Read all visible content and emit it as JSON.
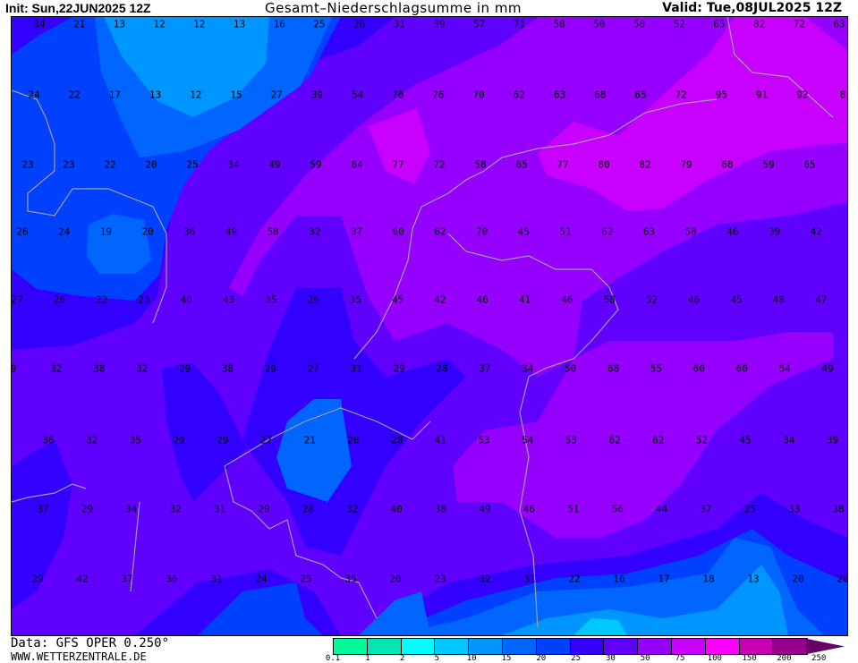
{
  "header": {
    "init": "Init: Sun,22JUN2025 12Z",
    "title": "Gesamt–Niederschlagsumme in mm",
    "valid": "Valid: Tue,08JUL2025 12Z"
  },
  "footer": {
    "source": "Data: GFS OPER 0.250°",
    "site": "WWW.WETTERZENTRALE.DE"
  },
  "legend": {
    "ticks": [
      "0.1",
      "1",
      "2",
      "5",
      "10",
      "15",
      "20",
      "25",
      "30",
      "50",
      "75",
      "100",
      "150",
      "200",
      "250"
    ],
    "colors": [
      "#00fa9a",
      "#00e6b4",
      "#00ffff",
      "#00c8ff",
      "#0096ff",
      "#0066ff",
      "#0040ff",
      "#3300ff",
      "#6000ff",
      "#9600ff",
      "#c800ff",
      "#ff00ff",
      "#c800b4",
      "#96008c",
      "#640064"
    ]
  },
  "map": {
    "colors": {
      "c10": "#0096ff",
      "c15": "#0066ff",
      "c20": "#0040ff",
      "c25": "#3300ff",
      "c30": "#6000ff",
      "c50": "#9600ff",
      "c75": "#c800ff",
      "c5": "#00c8ff",
      "border": "#a0a0a0"
    },
    "rows": [
      [
        "34",
        "21",
        "13",
        "12",
        "12",
        "13",
        "16",
        "25",
        "26",
        "31",
        "39",
        "57",
        "71",
        "58",
        "50",
        "50",
        "52",
        "65",
        "82",
        "72",
        "63"
      ],
      [
        "24",
        "22",
        "17",
        "13",
        "12",
        "15",
        "27",
        "39",
        "54",
        "70",
        "76",
        "70",
        "62",
        "63",
        "68",
        "65",
        "72",
        "95",
        "91",
        "92",
        "8"
      ],
      [
        "23",
        "23",
        "22",
        "20",
        "25",
        "34",
        "49",
        "59",
        "64",
        "77",
        "72",
        "58",
        "65",
        "77",
        "80",
        "82",
        "79",
        "68",
        "59",
        "65"
      ],
      [
        "26",
        "24",
        "19",
        "20",
        "36",
        "49",
        "58",
        "32",
        "37",
        "60",
        "62",
        "70",
        "45",
        "51",
        "62",
        "63",
        "58",
        "46",
        "39",
        "42"
      ],
      [
        "27",
        "28",
        "22",
        "23",
        "40",
        "43",
        "35",
        "26",
        "35",
        "45",
        "42",
        "46",
        "41",
        "46",
        "58",
        "52",
        "46",
        "45",
        "48",
        "47"
      ],
      [
        "9",
        "32",
        "38",
        "32",
        "29",
        "38",
        "29",
        "27",
        "31",
        "29",
        "28",
        "37",
        "34",
        "50",
        "68",
        "55",
        "60",
        "60",
        "54",
        "49"
      ],
      [
        "36",
        "32",
        "35",
        "29",
        "29",
        "27",
        "21",
        "26",
        "28",
        "41",
        "53",
        "54",
        "53",
        "62",
        "62",
        "52",
        "45",
        "34",
        "39"
      ],
      [
        "37",
        "29",
        "34",
        "32",
        "31",
        "29",
        "28",
        "32",
        "40",
        "38",
        "49",
        "46",
        "51",
        "56",
        "44",
        "37",
        "25",
        "33",
        "38"
      ],
      [
        "29",
        "42",
        "37",
        "36",
        "31",
        "24",
        "25",
        "35",
        "20",
        "23",
        "32",
        "31",
        "22",
        "16",
        "17",
        "18",
        "13",
        "20",
        "26"
      ]
    ]
  }
}
